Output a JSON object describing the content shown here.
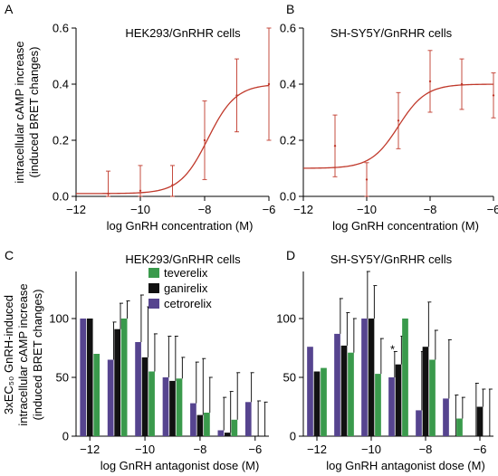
{
  "figure": {
    "shared_ylabel_top": [
      "intracellular cAMP increase",
      "(induced BRET changes)"
    ],
    "shared_ylabel_bottom": [
      "3xEC₅₀ GnRH-induced",
      "intracellular cAMP increase",
      "(induced BRET changes)"
    ]
  },
  "colors": {
    "curve": "#c0392b",
    "teverelix": "#3a9a4c",
    "ganirelix": "#111111",
    "cetrorelix": "#56448f"
  },
  "chart_data": [
    {
      "panel": "A",
      "type": "line",
      "title": "HEK293/GnRHR cells",
      "xlabel": "log GnRH concentration (M)",
      "ylabel": "",
      "xlim": [
        -12,
        -6
      ],
      "ylim": [
        0,
        0.6
      ],
      "xticks": [
        -12,
        -10,
        -8,
        -6
      ],
      "yticks": [
        0,
        0.2,
        0.4,
        0.6
      ],
      "curve": {
        "bottom": 0.01,
        "top": 0.4,
        "logEC50": -7.9,
        "hill": 1.0
      },
      "points": [
        {
          "x": -11,
          "y": 0.01,
          "err": 0.08
        },
        {
          "x": -10,
          "y": 0.02,
          "err": 0.09
        },
        {
          "x": -9,
          "y": 0.04,
          "err": 0.07
        },
        {
          "x": -8,
          "y": 0.2,
          "err": 0.14
        },
        {
          "x": -7,
          "y": 0.36,
          "err": 0.13
        },
        {
          "x": -6,
          "y": 0.4,
          "err": 0.2
        }
      ]
    },
    {
      "panel": "B",
      "type": "line",
      "title": "SH-SY5Y/GnRHR cells",
      "xlabel": "log GnRH concentration (M)",
      "ylabel": "",
      "xlim": [
        -12,
        -6
      ],
      "ylim": [
        0,
        0.6
      ],
      "xticks": [
        -12,
        -10,
        -8,
        -6
      ],
      "yticks": [
        0,
        0.2,
        0.4,
        0.6
      ],
      "curve": {
        "bottom": 0.1,
        "top": 0.4,
        "logEC50": -9.0,
        "hill": 1.0
      },
      "points": [
        {
          "x": -11,
          "y": 0.18,
          "err": 0.11
        },
        {
          "x": -10,
          "y": 0.06,
          "err": 0.06
        },
        {
          "x": -9,
          "y": 0.27,
          "err": 0.1
        },
        {
          "x": -8,
          "y": 0.41,
          "err": 0.11
        },
        {
          "x": -7,
          "y": 0.4,
          "err": 0.09
        },
        {
          "x": -6,
          "y": 0.36,
          "err": 0.08
        }
      ]
    },
    {
      "panel": "C",
      "type": "bar",
      "title": "HEK293/GnRHR cells",
      "xlabel": "log GnRH antagonist dose (M)",
      "ylabel": "",
      "xlim": [
        -12.5,
        -5.5
      ],
      "ylim": [
        0,
        140
      ],
      "xticks": [
        -12,
        -10,
        -8,
        -6
      ],
      "yticks": [
        0,
        50,
        100
      ],
      "categories": [
        -12,
        -11,
        -10,
        -9,
        -8,
        -7,
        -6
      ],
      "series": [
        {
          "name": "cetrorelix",
          "values": [
            100,
            65,
            80,
            50,
            28,
            5,
            29
          ],
          "err": [
            0,
            32,
            40,
            35,
            35,
            28,
            25
          ]
        },
        {
          "name": "ganirelix",
          "values": [
            100,
            91,
            67,
            47,
            18,
            3,
            0
          ],
          "err": [
            0,
            22,
            43,
            38,
            48,
            35,
            30
          ]
        },
        {
          "name": "teverelix",
          "values": [
            70,
            100,
            55,
            49,
            20,
            14,
            0
          ],
          "err": [
            0,
            15,
            32,
            18,
            30,
            40,
            29
          ]
        }
      ],
      "legend": [
        "teverelix",
        "ganirelix",
        "cetrorelix"
      ],
      "legend_position": "top-center"
    },
    {
      "panel": "D",
      "type": "bar",
      "title": "SH-SY5Y/GnRHR cells",
      "xlabel": "log GnRH antagonist dose (M)",
      "ylabel": "",
      "xlim": [
        -12.5,
        -5.5
      ],
      "ylim": [
        0,
        140
      ],
      "xticks": [
        -12,
        -10,
        -8,
        -6
      ],
      "yticks": [
        0,
        50,
        100
      ],
      "categories": [
        -12,
        -11,
        -10,
        -9,
        -8,
        -7,
        -6
      ],
      "series": [
        {
          "name": "cetrorelix",
          "values": [
            76,
            87,
            100,
            50,
            22,
            32,
            0
          ],
          "err": [
            0,
            30,
            45,
            22,
            50,
            50,
            45
          ]
        },
        {
          "name": "ganirelix",
          "values": [
            55,
            77,
            100,
            61,
            76,
            0,
            25
          ],
          "err": [
            0,
            28,
            28,
            24,
            38,
            35,
            15
          ]
        },
        {
          "name": "teverelix",
          "values": [
            58,
            71,
            53,
            100,
            65,
            15,
            0
          ],
          "err": [
            0,
            29,
            30,
            0,
            25,
            18,
            40
          ]
        }
      ],
      "annotations": [
        {
          "text": "*",
          "x": -9,
          "series": "cetrorelix"
        }
      ]
    }
  ]
}
